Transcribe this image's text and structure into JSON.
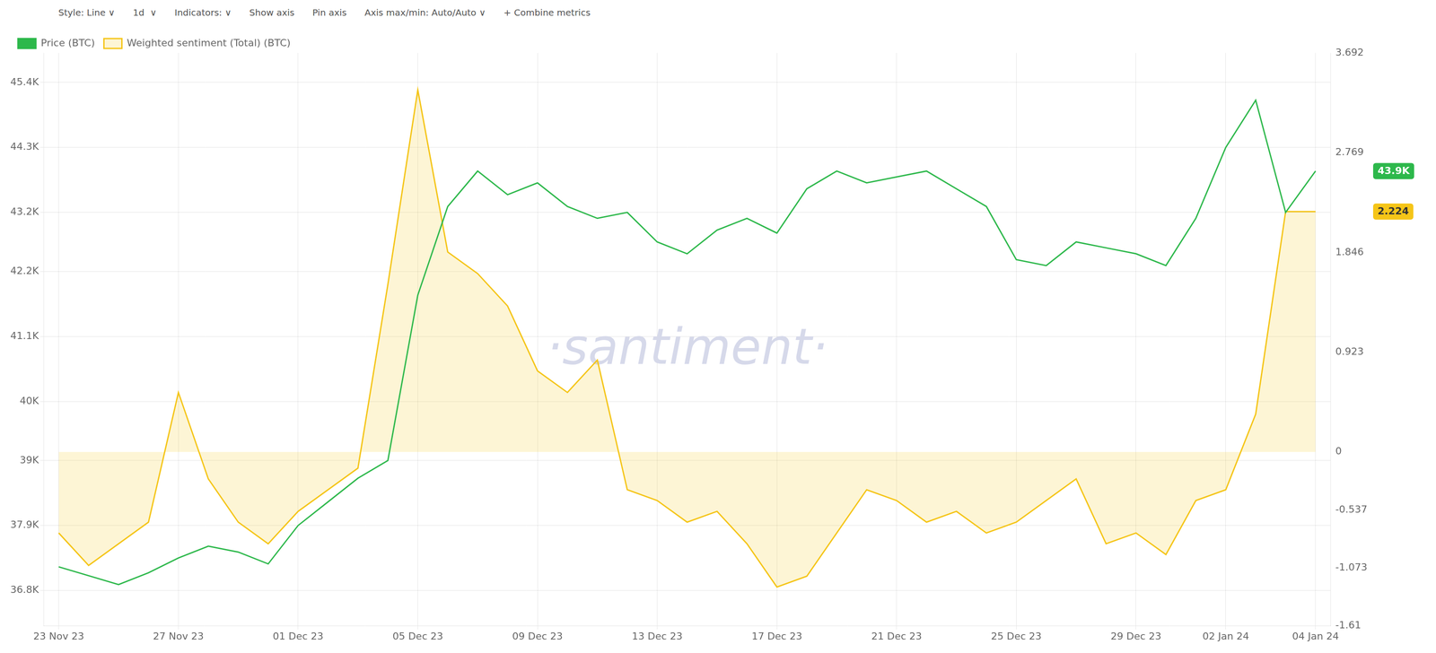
{
  "chart_data": {
    "type": "line",
    "categories": [
      "23 Nov 23",
      null,
      null,
      null,
      "27 Nov 23",
      null,
      null,
      null,
      "01 Dec 23",
      null,
      null,
      null,
      "05 Dec 23",
      null,
      null,
      null,
      "09 Dec 23",
      null,
      null,
      null,
      "13 Dec 23",
      null,
      null,
      null,
      "17 Dec 23",
      null,
      null,
      null,
      "21 Dec 23",
      null,
      null,
      null,
      "25 Dec 23",
      null,
      null,
      null,
      "29 Dec 23",
      null,
      null,
      "02 Jan 24",
      null,
      null,
      "04 Jan 24"
    ],
    "series": [
      {
        "name": "Price (BTC)",
        "color": "#2db84b",
        "values": [
          37200,
          37050,
          36900,
          37100,
          37350,
          37550,
          37450,
          37250,
          37900,
          38300,
          38700,
          39000,
          41800,
          43300,
          43900,
          43500,
          43700,
          43300,
          43100,
          43200,
          42700,
          42500,
          42900,
          43100,
          42850,
          43600,
          43900,
          43700,
          43800,
          43900,
          43600,
          43300,
          42400,
          42300,
          42700,
          42600,
          42500,
          42300,
          43100,
          44300,
          45100,
          43200,
          43900
        ]
      },
      {
        "name": "Weighted sentiment (Total) (BTC)",
        "color": "#f5c518",
        "axis": "y2",
        "values": [
          -0.75,
          -1.05,
          -0.85,
          -0.65,
          0.55,
          -0.25,
          -0.65,
          -0.85,
          -0.55,
          -0.35,
          -0.15,
          1.55,
          3.35,
          1.85,
          1.65,
          1.35,
          0.75,
          0.55,
          0.85,
          -0.35,
          -0.45,
          -0.65,
          -0.55,
          -0.85,
          -1.25,
          -1.15,
          -0.75,
          -0.35,
          -0.45,
          -0.65,
          -0.55,
          -0.75,
          -0.65,
          -0.45,
          -0.25,
          -0.85,
          -0.75,
          -0.95,
          -0.45,
          -0.35,
          0.35,
          2.224,
          2.224
        ]
      }
    ],
    "ylim": [
      36200,
      45900
    ],
    "yticks": [
      {
        "value": 36800,
        "label": "36.8K"
      },
      {
        "value": 37900,
        "label": "37.9K"
      },
      {
        "value": 39000,
        "label": "39K"
      },
      {
        "value": 40000,
        "label": "40K"
      },
      {
        "value": 41100,
        "label": "41.1K"
      },
      {
        "value": 42200,
        "label": "42.2K"
      },
      {
        "value": 43200,
        "label": "43.2K"
      },
      {
        "value": 44300,
        "label": "44.3K"
      },
      {
        "value": 45400,
        "label": "45.4K"
      }
    ],
    "y2lim": [
      -1.61,
      3.692
    ],
    "y2ticks": [
      -1.61,
      -1.073,
      -0.537,
      0,
      0.923,
      1.846,
      2.769,
      3.692
    ],
    "grid": true,
    "legend": "top",
    "annotations": [
      {
        "text": "·santiment·",
        "color": "#d6d9ea"
      },
      {
        "text": "43.9K",
        "y": 43900
      },
      {
        "text": "2.224",
        "y": 2.224,
        "axis": "y2"
      },
      {
        "text": "Style: Line ∨"
      },
      {
        "text": "1d  ∨"
      },
      {
        "text": "Indicators: ∨"
      },
      {
        "text": "Show axis"
      },
      {
        "text": "Pin axis"
      },
      {
        "text": "Axis max/min: Auto/Auto ∨"
      },
      {
        "text": "+ Combine metrics"
      }
    ]
  }
}
